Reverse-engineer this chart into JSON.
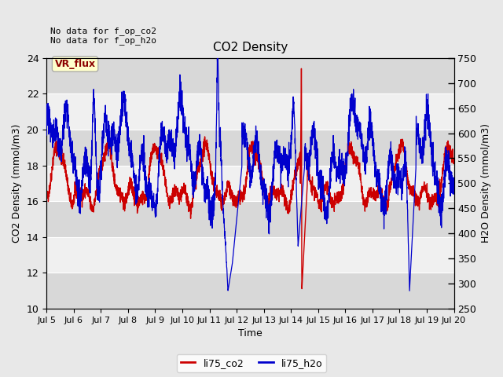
{
  "title": "CO2 Density",
  "xlabel": "Time",
  "ylabel_left": "CO2 Density (mmol/m3)",
  "ylabel_right": "H2O Density (mmol/m3)",
  "annotation_text": "No data for f_op_co2\nNo data for f_op_h2o",
  "vr_flux_label": "VR_flux",
  "legend_labels": [
    "li75_co2",
    "li75_h2o"
  ],
  "co2_color": "#cc0000",
  "h2o_color": "#0000cc",
  "ylim_left": [
    10,
    24
  ],
  "ylim_right": [
    250,
    750
  ],
  "yticks_left": [
    10,
    12,
    14,
    16,
    18,
    20,
    22,
    24
  ],
  "yticks_right": [
    250,
    300,
    350,
    400,
    450,
    500,
    550,
    600,
    650,
    700,
    750
  ],
  "bg_color": "#e8e8e8",
  "plot_bg_color": "#e8e8e8",
  "band_light_color": "#f0f0f0",
  "band_dark_color": "#d8d8d8",
  "x_start": 5.0,
  "x_end": 20.0,
  "xtick_labels": [
    "Jul 5",
    "Jul 6",
    "Jul 7",
    "Jul 8",
    "Jul 9",
    "Jul 10",
    "Jul 11",
    "Jul 12",
    "Jul 13",
    "Jul 14",
    "Jul 15",
    "Jul 16",
    "Jul 17",
    "Jul 18",
    "Jul 19",
    "Jul 20"
  ],
  "xtick_positions": [
    5,
    6,
    7,
    8,
    9,
    10,
    11,
    12,
    13,
    14,
    15,
    16,
    17,
    18,
    19,
    20
  ]
}
